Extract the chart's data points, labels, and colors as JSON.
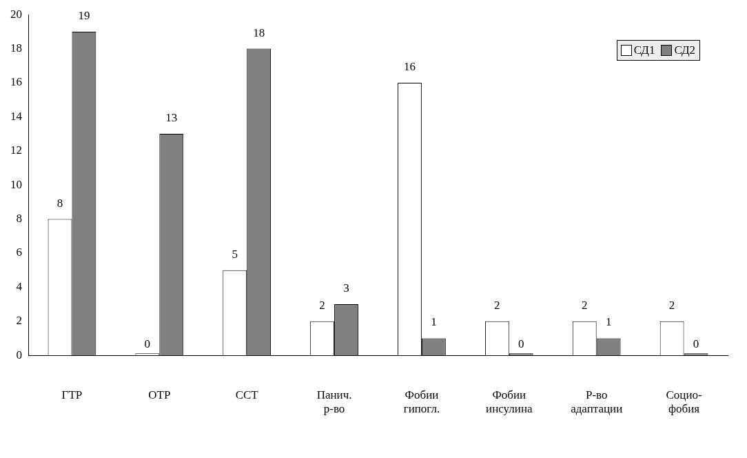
{
  "chart_data": {
    "type": "bar",
    "categories": [
      "ГТР",
      "ОТР",
      "ССТ",
      "Панич.\nр-во",
      "Фобии\nгипогл.",
      "Фобии\nинсулина",
      "Р-во\nадаптации",
      "Социо-\nфобия"
    ],
    "series": [
      {
        "name": "СД1",
        "color": "#ffffff",
        "values": [
          8,
          0,
          5,
          2,
          16,
          2,
          2,
          2
        ]
      },
      {
        "name": "СД2",
        "color": "#808080",
        "values": [
          19,
          13,
          18,
          3,
          1,
          0,
          1,
          0
        ]
      }
    ],
    "ylim": [
      0,
      20
    ],
    "yticks": [
      0,
      2,
      4,
      6,
      8,
      10,
      12,
      14,
      16,
      18,
      20
    ],
    "grid": false,
    "legend": "top right",
    "data_labels": true
  }
}
